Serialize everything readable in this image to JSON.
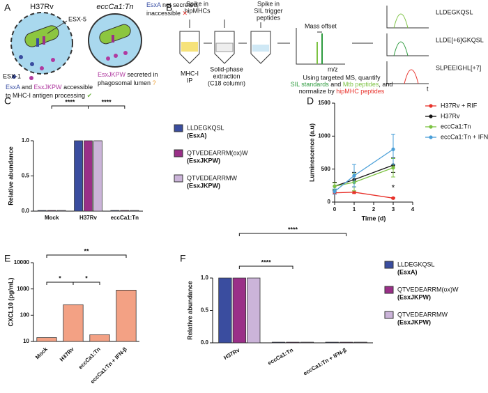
{
  "panel_a": {
    "label": "A",
    "wt_title": "H37Rv",
    "mut_title": "eccCa1:Tn",
    "esx5": "ESX-5",
    "esx1": "ESX-1",
    "wt_caption": {
      "esxa": "EsxA",
      "and": " and ",
      "esxjkpw": "EsxJKPW",
      "rest1": " accessible",
      "line2": "to MHC-I antigen processing",
      "mark": " ✔"
    },
    "mut_caption1": {
      "esxa": "EsxA",
      "rest1": " not secreted,",
      "line2": "inaccessible",
      "mark": " ✕"
    },
    "mut_caption2": {
      "esxjkpw": "EsxJKPW",
      "rest1": " secreted in",
      "line2": "phagosomal lumen",
      "mark": " ?"
    }
  },
  "panel_b": {
    "label": "B",
    "spike1": [
      "Spike in",
      "hipMHCs"
    ],
    "spike2": [
      "Spike in",
      "SIL trigger",
      "peptides"
    ],
    "step1": [
      "MHC-I",
      "IP"
    ],
    "step2": [
      "Solid-phase",
      "extraction",
      "(C18 column)"
    ],
    "mass_offset": "Mass offset",
    "mz": "m/z",
    "t": "t",
    "peaks": [
      "LLDEGKQSL",
      "LLDE[+6]GKQSL",
      "SLPEEIGHL[+7]"
    ],
    "summary": {
      "line1": "Using targeted MS, quantify",
      "sil": "SIL standards",
      "and": " and ",
      "mtb": "Mtb peptides",
      "comma": ", and",
      "norm": "normalize by ",
      "hip": "hipMHC peptides"
    }
  },
  "chart_data": [
    {
      "type": "bar",
      "panel": "C",
      "y_label": "Relative abundance",
      "categories": [
        "Mock",
        "H37Rv",
        "eccCa1:Tn"
      ],
      "series": [
        {
          "name": "LLDEGKQSL",
          "note": "(EsxA)",
          "note_color": "#3b50a5",
          "color": "#3a4d9f",
          "values": [
            0.01,
            1.0,
            0.01
          ]
        },
        {
          "name": "QTVEDEARRM(ox)W",
          "note": "(EsxJKPW)",
          "note_color": "#b03aa0",
          "color": "#9a2f88",
          "values": [
            0.01,
            1.0,
            0.01
          ]
        },
        {
          "name": "QTVEDEARRMW",
          "note": "(EsxJKPW)",
          "note_color": "#b03aa0",
          "color": "#cbb4d9",
          "values": [
            0.01,
            1.0,
            0.01
          ]
        }
      ],
      "ylim": [
        0,
        1
      ],
      "yticks": [
        {
          "value": 0,
          "label": "0.0"
        },
        0.5,
        {
          "value": 1,
          "label": "1.0"
        }
      ],
      "significance": [
        "****",
        "****"
      ]
    },
    {
      "type": "line",
      "panel": "D",
      "y_label": "Luminescence (a.u)",
      "x_label": "Time (d)",
      "x": [
        0,
        1,
        3
      ],
      "series": [
        {
          "name": "H37Rv + RIF",
          "color": "#e8312a",
          "values": [
            140,
            150,
            60
          ],
          "errors": [
            20,
            20,
            10
          ]
        },
        {
          "name": "H37Rv",
          "color": "#111111",
          "values": [
            240,
            340,
            560
          ],
          "errors": [
            60,
            110,
            110
          ]
        },
        {
          "name": "eccCa1:Tn",
          "color": "#7cc242",
          "values": [
            240,
            300,
            520
          ],
          "errors": [
            50,
            130,
            140
          ]
        },
        {
          "name": "eccCa1:Tn + IFN-β",
          "color": "#4a9fd8",
          "values": [
            160,
            400,
            800
          ],
          "errors": [
            40,
            170,
            230
          ]
        }
      ],
      "xlim": [
        0,
        4
      ],
      "xticks": [
        0,
        1,
        2,
        3,
        4
      ],
      "ylim": [
        0,
        1500
      ],
      "yticks": [
        0,
        500,
        1000,
        1500
      ],
      "annotation": "*"
    },
    {
      "type": "bar",
      "panel": "E",
      "y_label": "CXCL10 (pg/mL)",
      "categories": [
        "Mock",
        "H37Rv",
        "eccCa1:Tn",
        "eccCa1:Tn + IFN-β"
      ],
      "values": [
        14,
        250,
        18,
        900
      ],
      "color": "#f3a184",
      "log_y": true,
      "ylim": [
        10,
        10000
      ],
      "yticks": [
        10,
        100,
        1000,
        10000
      ],
      "significance": [
        "*",
        "*",
        "**"
      ]
    },
    {
      "type": "bar",
      "panel": "F",
      "y_label": "Relative abundance",
      "categories": [
        "H37Rv",
        "eccCa1:Tn",
        "eccCa1:Tn + IFN-β"
      ],
      "series": [
        {
          "name": "LLDEGKQSL",
          "note": "(EsxA)",
          "note_color": "#3b50a5",
          "color": "#3a4d9f",
          "values": [
            1.0,
            0.01,
            0.01
          ]
        },
        {
          "name": "QTVEDEARRM(ox)W",
          "note": "(EsxJKPW)",
          "note_color": "#b03aa0",
          "color": "#9a2f88",
          "values": [
            1.0,
            0.01,
            0.01
          ]
        },
        {
          "name": "QTVEDEARRMW",
          "note": "(EsxJKPW)",
          "note_color": "#b03aa0",
          "color": "#cbb4d9",
          "values": [
            1.0,
            0.01,
            0.01
          ]
        }
      ],
      "ylim": [
        0,
        1
      ],
      "yticks": [
        {
          "value": 0,
          "label": "0.0"
        },
        0.5,
        {
          "value": 1,
          "label": "1.0"
        }
      ],
      "significance": [
        "****",
        "****"
      ]
    }
  ]
}
